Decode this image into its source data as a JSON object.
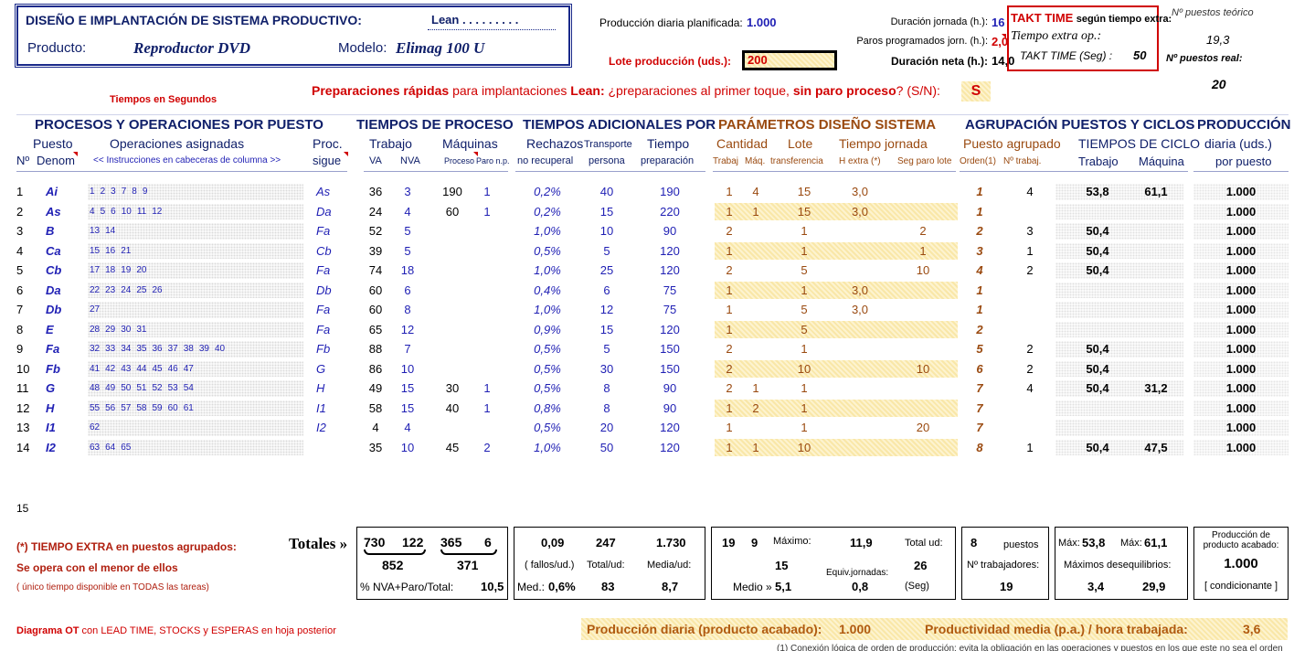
{
  "header": {
    "title": "DISEÑO E IMPLANTACIÓN DE SISTEMA PRODUCTIVO:",
    "lean": "Lean . . . . . . . . .",
    "product_label": "Producto:",
    "product": "Reproductor DVD",
    "model_label": "Modelo:",
    "model": "Elimag 100 U",
    "prod_planned_label": "Producción diaria planificada:",
    "prod_planned": "1.000",
    "lot_label": "Lote producción (uds.):",
    "lot_value": "200",
    "duration_label": "Duración jornada (h.):",
    "duration": "16",
    "stops_label": "Paros programados jorn. (h.):",
    "stops": "2,0",
    "net_label": "Duración neta (h.):",
    "net": "14,0",
    "takt_title": "TAKT TIME",
    "takt_suffix": "según tiempo extra:",
    "extra_time": "Tiempo extra op.:",
    "takt_seg_label": "TAKT TIME (Seg) :",
    "takt_seg": "50",
    "theoretic_label": "Nº puestos teórico",
    "theoretic": "19,3",
    "real_label": "Nº puestos real:",
    "real": "20",
    "times_in_seconds": "Tiempos en Segundos",
    "quick_a": "Preparaciones rápidas",
    "quick_b": " para implantaciones ",
    "quick_c": "Lean:",
    "quick_d": " ¿preparaciones al primer toque, ",
    "quick_e": "sin paro proceso",
    "quick_f": "? (S/N):",
    "quick_value": "S"
  },
  "groups": {
    "procesos": "PROCESOS Y OPERACIONES POR PUESTO",
    "tiempos": "TIEMPOS DE PROCESO",
    "adicionales": "TIEMPOS ADICIONALES POR",
    "parametros": "PARÁMETROS DISEÑO SISTEMA",
    "agrupacion": "AGRUPACIÓN PUESTOS Y CICLOS",
    "produccion": "PRODUCCIÓN"
  },
  "sub1": {
    "puesto": "Puesto",
    "operaciones": "Operaciones asignadas",
    "proc": "Proc.",
    "trabajo": "Trabajo",
    "maquinas": "Máquinas",
    "rechazos": "Rechazos",
    "transporte": "Transporte",
    "tiempo": "Tiempo",
    "cantidad": "Cantidad",
    "lote": "Lote",
    "tiempo_jornada": "Tiempo jornada",
    "puesto_agrupado": "Puesto agrupado",
    "tiempos_ciclo": "TIEMPOS DE CICLO",
    "diaria": "diaria (uds.)"
  },
  "sub2": {
    "num": "Nº",
    "denom": "Denom",
    "instr": "<< Instrucciones en cabeceras de columna >>",
    "sigue": "sigue",
    "va": "VA",
    "nva": "NVA",
    "proceso": "Proceso",
    "paro": "Paro n.p.",
    "no_recup": "no recuperal",
    "persona": "persona",
    "preparacion": "preparación",
    "trabaj": "Trabaj",
    "maq": "Máq.",
    "transferencia": "transferencia",
    "hextra": "H extra (*)",
    "seg_paro": "Seg paro lote",
    "orden": "Orden(1)",
    "ntrabaj": "Nº trabaj.",
    "c_trabajo": "Trabajo",
    "c_maquina": "Máquina",
    "por_puesto": "por puesto"
  },
  "rows": [
    {
      "n": "1",
      "d": "Ai",
      "ops": [
        "1",
        "2",
        "3",
        "7",
        "8",
        "9"
      ],
      "s": "As",
      "va": "36",
      "nva": "3",
      "mp": "190",
      "mn": "1",
      "rech": "0,2%",
      "tr": "40",
      "prep": "190",
      "ct": "1",
      "cm": "4",
      "lote": "15",
      "hx": "3,0",
      "sp": "",
      "hl": false,
      "ord": "1",
      "nt": "4",
      "cyt": "53,8",
      "cym": "61,1",
      "prod": "1.000"
    },
    {
      "n": "2",
      "d": "As",
      "ops": [
        "4",
        "5",
        "6",
        "10",
        "11",
        "12"
      ],
      "s": "Da",
      "va": "24",
      "nva": "4",
      "mp": "60",
      "mn": "1",
      "rech": "0,2%",
      "tr": "15",
      "prep": "220",
      "ct": "1",
      "cm": "1",
      "lote": "15",
      "hx": "3,0",
      "sp": "",
      "hl": true,
      "ord": "1",
      "nt": "",
      "cyt": "",
      "cym": "",
      "prod": "1.000"
    },
    {
      "n": "3",
      "d": "B",
      "ops": [
        "13",
        "14"
      ],
      "s": "Fa",
      "va": "52",
      "nva": "5",
      "mp": "",
      "mn": "",
      "rech": "1,0%",
      "tr": "10",
      "prep": "90",
      "ct": "2",
      "cm": "",
      "lote": "1",
      "hx": "",
      "sp": "2",
      "hl": false,
      "ord": "2",
      "nt": "3",
      "cyt": "50,4",
      "cym": "",
      "prod": "1.000"
    },
    {
      "n": "4",
      "d": "Ca",
      "ops": [
        "15",
        "16",
        "21"
      ],
      "s": "Cb",
      "va": "39",
      "nva": "5",
      "mp": "",
      "mn": "",
      "rech": "0,5%",
      "tr": "5",
      "prep": "120",
      "ct": "1",
      "cm": "",
      "lote": "1",
      "hx": "",
      "sp": "1",
      "hl": true,
      "ord": "3",
      "nt": "1",
      "cyt": "50,4",
      "cym": "",
      "prod": "1.000"
    },
    {
      "n": "5",
      "d": "Cb",
      "ops": [
        "17",
        "18",
        "19",
        "20"
      ],
      "s": "Fa",
      "va": "74",
      "nva": "18",
      "mp": "",
      "mn": "",
      "rech": "1,0%",
      "tr": "25",
      "prep": "120",
      "ct": "2",
      "cm": "",
      "lote": "5",
      "hx": "",
      "sp": "10",
      "hl": false,
      "ord": "4",
      "nt": "2",
      "cyt": "50,4",
      "cym": "",
      "prod": "1.000"
    },
    {
      "n": "6",
      "d": "Da",
      "ops": [
        "22",
        "23",
        "24",
        "25",
        "26"
      ],
      "s": "Db",
      "va": "60",
      "nva": "6",
      "mp": "",
      "mn": "",
      "rech": "0,4%",
      "tr": "6",
      "prep": "75",
      "ct": "1",
      "cm": "",
      "lote": "1",
      "hx": "3,0",
      "sp": "",
      "hl": true,
      "ord": "1",
      "nt": "",
      "cyt": "",
      "cym": "",
      "prod": "1.000"
    },
    {
      "n": "7",
      "d": "Db",
      "ops": [
        "27"
      ],
      "s": "Fa",
      "va": "60",
      "nva": "8",
      "mp": "",
      "mn": "",
      "rech": "1,0%",
      "tr": "12",
      "prep": "75",
      "ct": "1",
      "cm": "",
      "lote": "5",
      "hx": "3,0",
      "sp": "",
      "hl": false,
      "ord": "1",
      "nt": "",
      "cyt": "",
      "cym": "",
      "prod": "1.000"
    },
    {
      "n": "8",
      "d": "E",
      "ops": [
        "28",
        "29",
        "30",
        "31"
      ],
      "s": "Fa",
      "va": "65",
      "nva": "12",
      "mp": "",
      "mn": "",
      "rech": "0,9%",
      "tr": "15",
      "prep": "120",
      "ct": "1",
      "cm": "",
      "lote": "5",
      "hx": "",
      "sp": "",
      "hl": true,
      "ord": "2",
      "nt": "",
      "cyt": "",
      "cym": "",
      "prod": "1.000"
    },
    {
      "n": "9",
      "d": "Fa",
      "ops": [
        "32",
        "33",
        "34",
        "35",
        "36",
        "37",
        "38",
        "39",
        "40"
      ],
      "s": "Fb",
      "va": "88",
      "nva": "7",
      "mp": "",
      "mn": "",
      "rech": "0,5%",
      "tr": "5",
      "prep": "150",
      "ct": "2",
      "cm": "",
      "lote": "1",
      "hx": "",
      "sp": "",
      "hl": false,
      "ord": "5",
      "nt": "2",
      "cyt": "50,4",
      "cym": "",
      "prod": "1.000"
    },
    {
      "n": "10",
      "d": "Fb",
      "ops": [
        "41",
        "42",
        "43",
        "44",
        "45",
        "46",
        "47"
      ],
      "s": "G",
      "va": "86",
      "nva": "10",
      "mp": "",
      "mn": "",
      "rech": "0,5%",
      "tr": "30",
      "prep": "150",
      "ct": "2",
      "cm": "",
      "lote": "10",
      "hx": "",
      "sp": "10",
      "hl": true,
      "ord": "6",
      "nt": "2",
      "cyt": "50,4",
      "cym": "",
      "prod": "1.000"
    },
    {
      "n": "11",
      "d": "G",
      "ops": [
        "48",
        "49",
        "50",
        "51",
        "52",
        "53",
        "54"
      ],
      "s": "H",
      "va": "49",
      "nva": "15",
      "mp": "30",
      "mn": "1",
      "rech": "0,5%",
      "tr": "8",
      "prep": "90",
      "ct": "2",
      "cm": "1",
      "lote": "1",
      "hx": "",
      "sp": "",
      "hl": false,
      "ord": "7",
      "nt": "4",
      "cyt": "50,4",
      "cym": "31,2",
      "prod": "1.000"
    },
    {
      "n": "12",
      "d": "H",
      "ops": [
        "55",
        "56",
        "57",
        "58",
        "59",
        "60",
        "61"
      ],
      "s": "I1",
      "va": "58",
      "nva": "15",
      "mp": "40",
      "mn": "1",
      "rech": "0,8%",
      "tr": "8",
      "prep": "90",
      "ct": "1",
      "cm": "2",
      "lote": "1",
      "hx": "",
      "sp": "",
      "hl": true,
      "ord": "7",
      "nt": "",
      "cyt": "",
      "cym": "",
      "prod": "1.000"
    },
    {
      "n": "13",
      "d": "I1",
      "ops": [
        "62"
      ],
      "s": "I2",
      "va": "4",
      "nva": "4",
      "mp": "",
      "mn": "",
      "rech": "0,5%",
      "tr": "20",
      "prep": "120",
      "ct": "1",
      "cm": "",
      "lote": "1",
      "hx": "",
      "sp": "20",
      "hl": false,
      "ord": "7",
      "nt": "",
      "cyt": "",
      "cym": "",
      "prod": "1.000"
    },
    {
      "n": "14",
      "d": "I2",
      "ops": [
        "63",
        "64",
        "65"
      ],
      "s": "",
      "va": "35",
      "nva": "10",
      "mp": "45",
      "mn": "2",
      "rech": "1,0%",
      "tr": "50",
      "prep": "120",
      "ct": "1",
      "cm": "1",
      "lote": "10",
      "hx": "",
      "sp": "",
      "hl": true,
      "ord": "8",
      "nt": "1",
      "cyt": "50,4",
      "cym": "47,5",
      "prod": "1.000"
    }
  ],
  "row15": "15",
  "totals": {
    "note1": "(*) TIEMPO EXTRA en puestos agrupados:",
    "note2": "Se opera con el menor de ellos",
    "note3": "( único tiempo disponible en TODAS las tareas)",
    "totales": "Totales »",
    "va": "730",
    "nva": "122",
    "mp": "365",
    "mn": "6",
    "sum1": "852",
    "sum2": "371",
    "pct_label": "% NVA+Paro/Total:",
    "pct": "10,5",
    "f1": "0,09",
    "f2": "247",
    "f3": "1.730",
    "fallos": "( fallos/ud.)",
    "totalud": "Total/ud:",
    "mediaud": "Media/ud:",
    "med_label": "Med.:",
    "med": "0,6%",
    "tr_avg": "83",
    "prep_avg": "8,7",
    "p1": "19",
    "p2": "9",
    "max_label": "Máximo:",
    "max": "11,9",
    "totalud2": "Total ud:",
    "p3": "15",
    "p4": "26",
    "equiv": "Equiv.jornadas:",
    "medio_label": "Medio »",
    "medio": "5,1",
    "p5": "0,8",
    "seg": "(Seg)",
    "g1": "8",
    "puestos": "puestos",
    "ntrab_label": "Nº trabajadores:",
    "ntrab": "19",
    "max1_label": "Máx:",
    "max1": "53,8",
    "max2_label": "Máx:",
    "max2": "61,1",
    "deseq": "Máximos desequilibrios:",
    "d1": "3,4",
    "d2": "29,9",
    "pa_label": "Producción de producto acabado:",
    "pa": "1.000",
    "cond": "[ condicionante ]"
  },
  "footer": {
    "ot_a": "Diagrama OT",
    "ot_b": " con LEAD TIME, STOCKS y ESPERAS en hoja posterior",
    "daily_label": "Producción diaria (producto acabado):",
    "daily": "1.000",
    "product_label": "Productividad media (p.a.) / hora trabajada:",
    "product": "3,6",
    "cut": "(1) Conexión lógica de orden de producción: evita la obligación en las operaciones y puestos en los que este no sea el orden"
  },
  "colors": {
    "blue": "#1f1fb4",
    "red": "#d00000",
    "brown": "#9a4a10",
    "highlight": "#fbe9b0"
  }
}
